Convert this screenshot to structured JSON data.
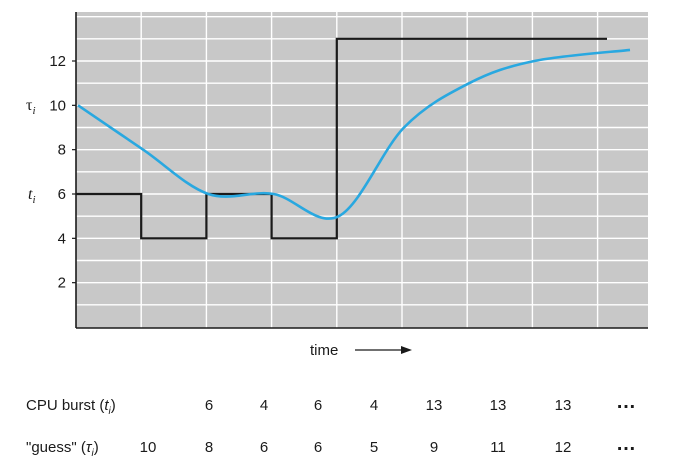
{
  "chart_data": {
    "type": "line",
    "xlabel": "time",
    "y_ticks": [
      2,
      4,
      6,
      8,
      10,
      12
    ],
    "ylim": [
      0,
      14.5
    ],
    "grid": true,
    "background": "#c8c8c8",
    "y_symbols": {
      "tau": "τ",
      "t": "t",
      "subscript": "i"
    },
    "series": [
      {
        "key": "burst",
        "color": "#1a1a1a",
        "style": "step",
        "values": [
          6,
          4,
          6,
          4,
          13,
          13,
          13,
          13
        ]
      },
      {
        "key": "guess",
        "color": "#29a8e0",
        "style": "smooth",
        "values": [
          10,
          8,
          6,
          6,
          5,
          9,
          11,
          12,
          12.5
        ]
      }
    ]
  },
  "table": {
    "rows": [
      {
        "label_prefix": "CPU burst (",
        "label_var": "t",
        "label_sub": "i",
        "label_suffix": ")",
        "values": [
          "",
          "6",
          "4",
          "6",
          "4",
          "13",
          "13",
          "13"
        ],
        "dots": "…"
      },
      {
        "label_prefix": "\"guess\" (",
        "label_var": "τ",
        "label_sub": "i",
        "label_suffix": ")",
        "values": [
          "10",
          "8",
          "6",
          "6",
          "5",
          "9",
          "11",
          "12"
        ],
        "dots": "…"
      }
    ]
  }
}
